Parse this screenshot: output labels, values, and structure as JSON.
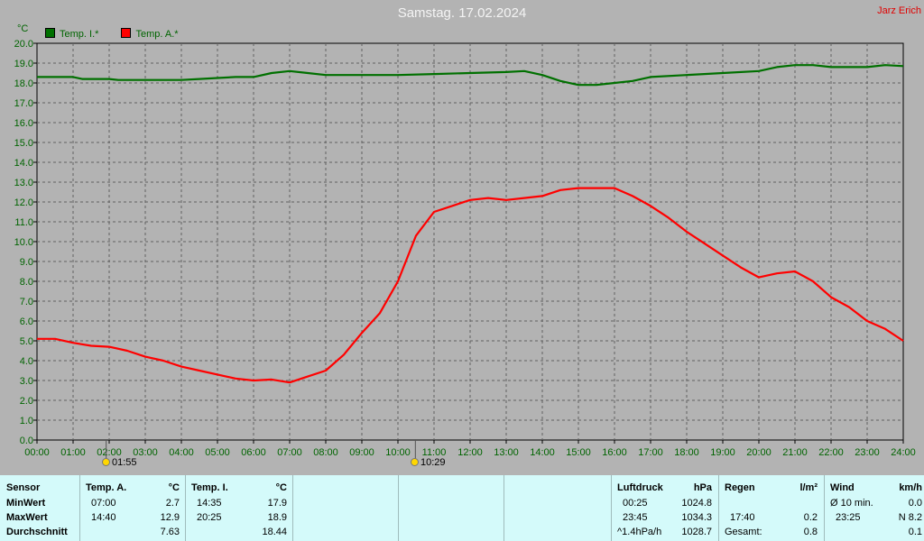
{
  "header": {
    "title": "Samstag. 17.02.2024",
    "author": "Jarz Erich",
    "unit": "°C"
  },
  "colors": {
    "inside": "#007000",
    "outside": "#ff0000",
    "grid": "#606060",
    "axis_text": "#006400"
  },
  "markers": [
    {
      "label": "01:55",
      "time": 1.9167,
      "icon": "sunrise-icon"
    },
    {
      "label": "10:29",
      "time": 10.4833,
      "icon": "sunset-icon"
    }
  ],
  "chart_data": {
    "type": "line",
    "title": "Samstag. 17.02.2024",
    "ylabel": "°C",
    "xlabel": "",
    "xlim": [
      0,
      24
    ],
    "ylim": [
      0,
      20
    ],
    "grid": true,
    "legend_position": "top-left",
    "x_ticks": [
      "00:00",
      "01:00",
      "02:00",
      "03:00",
      "04:00",
      "05:00",
      "06:00",
      "07:00",
      "08:00",
      "09:00",
      "10:00",
      "11:00",
      "12:00",
      "13:00",
      "14:00",
      "15:00",
      "16:00",
      "17:00",
      "18:00",
      "19:00",
      "20:00",
      "21:00",
      "22:00",
      "23:00",
      "24:00"
    ],
    "y_ticks": [
      "0.0",
      "1.0",
      "2.0",
      "3.0",
      "4.0",
      "5.0",
      "6.0",
      "7.0",
      "8.0",
      "9.0",
      "10.0",
      "11.0",
      "12.0",
      "13.0",
      "14.0",
      "15.0",
      "16.0",
      "17.0",
      "18.0",
      "19.0",
      "20.0"
    ],
    "series": [
      {
        "name": "Temp. I.*",
        "color": "#007000",
        "x": [
          0,
          1,
          1.25,
          2,
          2.25,
          3,
          4,
          4.5,
          5,
          5.5,
          6,
          6.5,
          7,
          7.5,
          8,
          9,
          10,
          11,
          12,
          13,
          13.5,
          14,
          14.5,
          15,
          15.5,
          16,
          16.5,
          17,
          18,
          19,
          20,
          20.5,
          21,
          21.5,
          22,
          23,
          23.5,
          24
        ],
        "y": [
          18.3,
          18.3,
          18.2,
          18.2,
          18.15,
          18.15,
          18.15,
          18.2,
          18.25,
          18.3,
          18.3,
          18.5,
          18.6,
          18.5,
          18.4,
          18.4,
          18.4,
          18.45,
          18.5,
          18.55,
          18.6,
          18.4,
          18.1,
          17.9,
          17.9,
          18.0,
          18.1,
          18.3,
          18.4,
          18.5,
          18.6,
          18.8,
          18.9,
          18.9,
          18.8,
          18.8,
          18.9,
          18.85
        ]
      },
      {
        "name": "Temp. A.*",
        "color": "#ff0000",
        "x": [
          0,
          0.5,
          1,
          1.5,
          2,
          2.5,
          3,
          3.5,
          4,
          4.5,
          5,
          5.5,
          6,
          6.5,
          7,
          7.5,
          8,
          8.5,
          9,
          9.5,
          10,
          10.5,
          11,
          11.5,
          12,
          12.5,
          13,
          13.5,
          14,
          14.5,
          15,
          15.5,
          16,
          16.5,
          17,
          17.5,
          18,
          18.5,
          19,
          19.5,
          20,
          20.5,
          21,
          21.5,
          22,
          22.5,
          23,
          23.5,
          24
        ],
        "y": [
          5.1,
          5.1,
          4.9,
          4.75,
          4.7,
          4.5,
          4.2,
          4.0,
          3.7,
          3.5,
          3.3,
          3.1,
          3.0,
          3.05,
          2.9,
          3.2,
          3.5,
          4.3,
          5.4,
          6.4,
          8.0,
          10.3,
          11.5,
          11.8,
          12.1,
          12.2,
          12.1,
          12.2,
          12.3,
          12.6,
          12.7,
          12.7,
          12.7,
          12.3,
          11.8,
          11.2,
          10.5,
          9.9,
          9.3,
          8.7,
          8.2,
          8.4,
          8.5,
          8.0,
          7.2,
          6.7,
          6.0,
          5.6,
          5.0
        ]
      }
    ]
  },
  "table": {
    "sensor": {
      "header": "Sensor",
      "rows": [
        "MinWert",
        "MaxWert",
        "Durchschnitt"
      ]
    },
    "temp_a": {
      "header": "Temp. A.",
      "unit": "°C",
      "min_time": "07:00",
      "min_val": "2.7",
      "max_time": "14:40",
      "max_val": "12.9",
      "avg": "7.63"
    },
    "temp_i": {
      "header": "Temp. I.",
      "unit": "°C",
      "min_time": "14:35",
      "min_val": "17.9",
      "max_time": "20:25",
      "max_val": "18.9",
      "avg": "18.44"
    },
    "pressure": {
      "header": "Luftdruck",
      "unit": "hPa",
      "min_time": "00:25",
      "min_val": "1024.8",
      "max_time": "23:45",
      "max_val": "1034.3",
      "trend_label": "^1.4hPa/h",
      "current": "1028.7"
    },
    "rain": {
      "header": "Regen",
      "unit": "l/m²",
      "time": "17:40",
      "val": "0.2",
      "total_label": "Gesamt:",
      "total": "0.8"
    },
    "wind": {
      "header": "Wind",
      "unit": "km/h",
      "avg_label": "Ø 10 min.",
      "avg": "0.0",
      "max_time": "23:25",
      "max_val": "N 8.2",
      "last": "0.1"
    }
  }
}
